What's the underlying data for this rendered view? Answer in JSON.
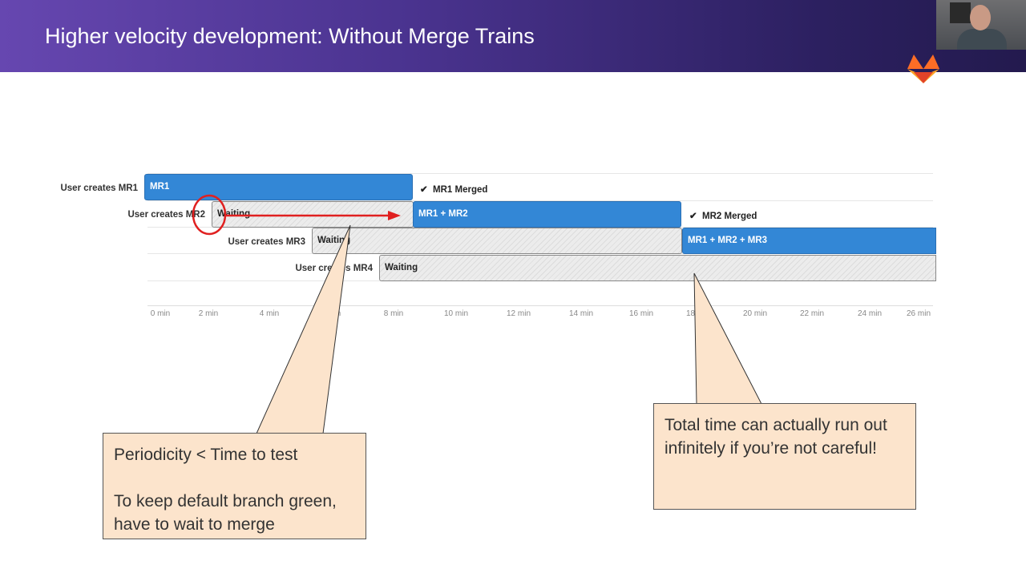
{
  "slide": {
    "title": "Higher velocity development: Without Merge Trains"
  },
  "rows": [
    {
      "label": "User creates MR1",
      "bars": [
        {
          "text": "MR1",
          "kind": "build"
        }
      ],
      "merged": "MR1 Merged"
    },
    {
      "label": "User creates MR2",
      "bars": [
        {
          "text": "Waiting",
          "kind": "waiting"
        },
        {
          "text": "MR1 + MR2",
          "kind": "build"
        }
      ],
      "merged": "MR2 Merged"
    },
    {
      "label": "User creates MR3",
      "bars": [
        {
          "text": "Waiting",
          "kind": "waiting"
        },
        {
          "text": "MR1 + MR2 + MR3",
          "kind": "build"
        }
      ]
    },
    {
      "label": "User creates MR4",
      "bars": [
        {
          "text": "Waiting",
          "kind": "waiting"
        }
      ]
    }
  ],
  "axis": {
    "ticks": [
      "0 min",
      "2 min",
      "4 min",
      "6 min",
      "8 min",
      "10 min",
      "12 min",
      "14 min",
      "16 min",
      "18 min",
      "20 min",
      "22 min",
      "24 min",
      "26 min"
    ]
  },
  "callouts": {
    "left": {
      "line1": "Periodicity < Time to test",
      "line2": "To keep default branch green, have to wait to merge"
    },
    "right": {
      "text": "Total time can actually run out infinitely if you’re not careful!"
    }
  },
  "colors": {
    "build": "#3387d6",
    "annotation": "#e02020",
    "callout_fill": "#fce4cc"
  },
  "icons": {
    "check": "check-icon",
    "logo": "gitlab-logo"
  }
}
